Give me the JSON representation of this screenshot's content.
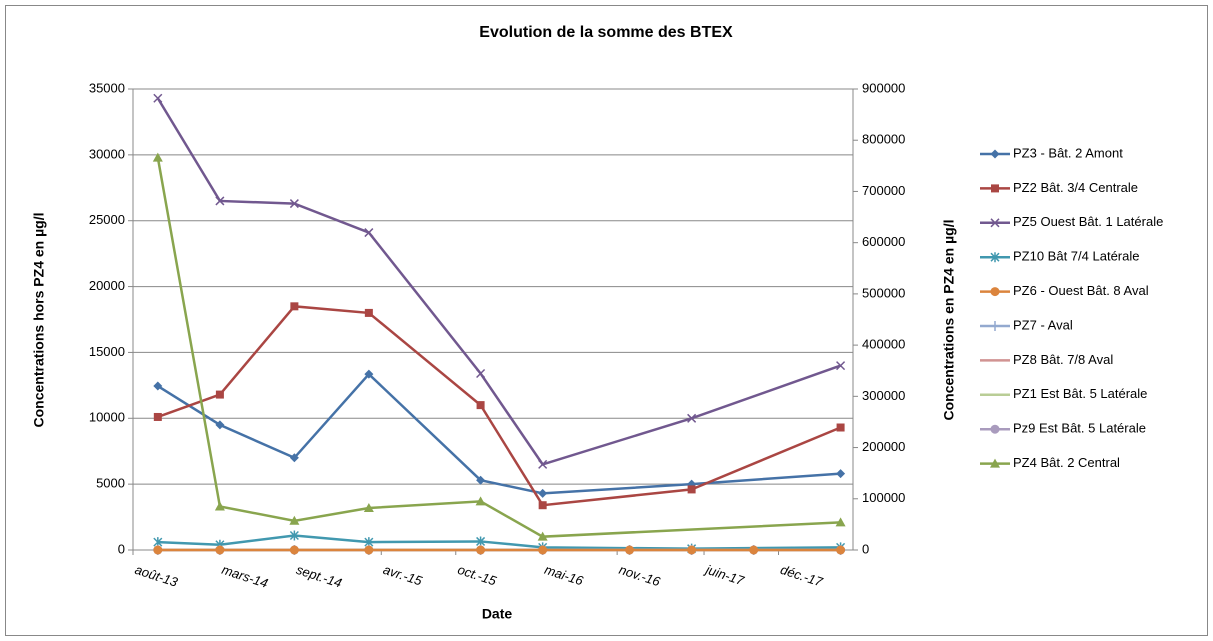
{
  "chart_data": {
    "type": "line",
    "title": "Evolution de la somme des BTEX",
    "x_label": "Date",
    "y_label": "Concentrations hors  PZ4 en µg/l",
    "y2_label": "Concentrations en PZ4 en  µg/l",
    "xlim": [
      "2013-08",
      "2018-06"
    ],
    "xticks": [
      {
        "value": "2013-08",
        "label": "août-13"
      },
      {
        "value": "2014-03",
        "label": "mars-14"
      },
      {
        "value": "2014-09",
        "label": "sept.-14"
      },
      {
        "value": "2015-04",
        "label": "avr.-15"
      },
      {
        "value": "2015-10",
        "label": "oct.-15"
      },
      {
        "value": "2016-05",
        "label": "mai-16"
      },
      {
        "value": "2016-11",
        "label": "nov.-16"
      },
      {
        "value": "2017-06",
        "label": "juin-17"
      },
      {
        "value": "2017-12",
        "label": "déc.-17"
      }
    ],
    "ylim": [
      0,
      35000
    ],
    "yticks": [
      0,
      5000,
      10000,
      15000,
      20000,
      25000,
      30000,
      35000
    ],
    "y2lim": [
      0,
      900000
    ],
    "y2ticks": [
      0,
      100000,
      200000,
      300000,
      400000,
      500000,
      600000,
      700000,
      800000,
      900000
    ],
    "grid": true,
    "legend": "right",
    "series": [
      {
        "name": "PZ3 - Bât. 2 Amont",
        "color": "#4572a7",
        "marker": "diamond",
        "x": [
          "2013-10",
          "2014-03",
          "2014-09",
          "2015-03",
          "2015-12",
          "2016-05",
          "2017-05",
          "2018-05"
        ],
        "values": [
          12450,
          9500,
          7000,
          13350,
          5300,
          4300,
          5000,
          5800
        ]
      },
      {
        "name": "PZ2 Bât. 3/4 Centrale",
        "color": "#aa4643",
        "marker": "square",
        "x": [
          "2013-10",
          "2014-03",
          "2014-09",
          "2015-03",
          "2015-12",
          "2016-05",
          "2017-05",
          "2018-05"
        ],
        "values": [
          10100,
          11800,
          18500,
          18000,
          11000,
          3400,
          4600,
          9300
        ]
      },
      {
        "name": "PZ5 Ouest Bât. 1 Latérale",
        "color": "#71588f",
        "marker": "x",
        "x": [
          "2013-10",
          "2014-03",
          "2014-09",
          "2015-03",
          "2015-12",
          "2016-05",
          "2017-05",
          "2018-05"
        ],
        "values": [
          34300,
          26500,
          26300,
          24100,
          13400,
          6500,
          10000,
          14000
        ]
      },
      {
        "name": "PZ10 Bât 7/4 Latérale",
        "color": "#4198af",
        "marker": "star",
        "x": [
          "2013-10",
          "2014-03",
          "2014-09",
          "2015-03",
          "2015-12",
          "2016-05",
          "2017-05",
          "2018-05"
        ],
        "values": [
          600,
          400,
          1100,
          600,
          650,
          200,
          100,
          200
        ]
      },
      {
        "name": "PZ7 - Aval",
        "color": "#93a9cf",
        "marker": "plus",
        "x": [
          "2013-10",
          "2014-03",
          "2014-09",
          "2015-03",
          "2015-12",
          "2016-05",
          "2016-12",
          "2017-05",
          "2017-10",
          "2018-05"
        ],
        "values": [
          0,
          0,
          0,
          0,
          0,
          0,
          0,
          0,
          0,
          0
        ]
      },
      {
        "name": "PZ8 Bât. 7/8 Aval",
        "color": "#d19392",
        "marker": "none",
        "x": [
          "2013-10",
          "2014-03",
          "2014-09",
          "2015-03",
          "2015-12",
          "2016-05",
          "2016-12",
          "2017-05",
          "2017-10",
          "2018-05"
        ],
        "values": [
          0,
          0,
          0,
          0,
          0,
          0,
          0,
          0,
          0,
          0
        ]
      },
      {
        "name": "PZ1 Est Bât. 5 Latérale",
        "color": "#b9cd96",
        "marker": "none",
        "x": [
          "2013-10",
          "2014-03",
          "2014-09",
          "2015-03",
          "2015-12",
          "2016-05",
          "2016-12",
          "2017-05",
          "2017-10",
          "2018-05"
        ],
        "values": [
          0,
          0,
          0,
          0,
          0,
          0,
          0,
          0,
          0,
          0
        ]
      },
      {
        "name": "Pz9 Est Bât. 5 Latérale",
        "color": "#a99bbd",
        "marker": "circle",
        "x": [
          "2013-10",
          "2014-03",
          "2014-09",
          "2015-03",
          "2015-12",
          "2016-05",
          "2016-12",
          "2017-05",
          "2017-10",
          "2018-05"
        ],
        "values": [
          0,
          0,
          0,
          0,
          0,
          0,
          0,
          0,
          0,
          0
        ]
      },
      {
        "name": "PZ6 - Ouest Bât. 8 Aval",
        "color": "#db843d",
        "marker": "circle",
        "x": [
          "2013-10",
          "2014-03",
          "2014-09",
          "2015-03",
          "2015-12",
          "2016-05",
          "2016-12",
          "2017-05",
          "2017-10",
          "2018-05"
        ],
        "values": [
          0,
          0,
          0,
          0,
          0,
          0,
          0,
          0,
          0,
          0
        ]
      },
      {
        "name": "PZ4 Bât. 2 Central",
        "color": "#89a54e",
        "marker": "triangle",
        "axis": "y2",
        "x": [
          "2013-10",
          "2014-03",
          "2014-09",
          "2015-03",
          "2015-12",
          "2016-05",
          "2018-05"
        ],
        "values": [
          766000,
          85000,
          57000,
          82000,
          95000,
          26000,
          54000
        ]
      }
    ]
  }
}
